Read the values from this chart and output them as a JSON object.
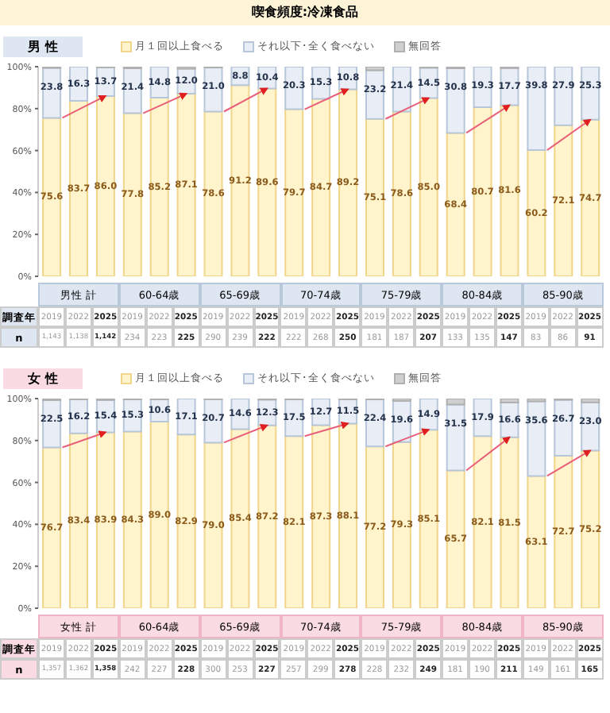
{
  "chart_data": [
    {
      "type": "bar",
      "title": "喫食頻度:冷凍食品",
      "subtitle": "男 性",
      "stacked": true,
      "legend": "top",
      "categories": [
        "2019",
        "2022",
        "2025",
        "2019",
        "2022",
        "2025",
        "2019",
        "2022",
        "2025",
        "2019",
        "2022",
        "2025",
        "2019",
        "2022",
        "2025",
        "2019",
        "2022",
        "2025",
        "2019",
        "2022",
        "2025"
      ],
      "series": [
        {
          "name": "月１回以上食べる",
          "color": "#fff4cc",
          "values": [
            75.6,
            83.7,
            86.0,
            77.8,
            85.2,
            87.1,
            78.6,
            91.2,
            89.6,
            79.7,
            84.7,
            89.2,
            75.1,
            78.6,
            85.0,
            68.4,
            80.7,
            81.6,
            60.2,
            72.1,
            74.7
          ],
          "value_labels": [
            "75.6",
            "83.7",
            "86.0",
            "77.8",
            "85.2",
            "87.1",
            "78.6",
            "91.2",
            "89.6",
            "79.7",
            "84.7",
            "89.2",
            "75.1",
            "78.6",
            "85.0",
            "68.4",
            "80.7",
            "81.6",
            "60.2",
            "72.1",
            "74.7"
          ]
        },
        {
          "name": "それ以下･全く食べない",
          "color": "#e9eef6",
          "values": [
            23.8,
            16.3,
            13.7,
            21.4,
            14.8,
            12.0,
            21.0,
            8.8,
            10.4,
            20.3,
            15.3,
            10.8,
            23.2,
            21.4,
            14.5,
            30.8,
            19.3,
            17.7,
            39.8,
            27.9,
            25.3
          ],
          "value_labels": [
            "23.8",
            "16.3",
            "13.7",
            "21.4",
            "14.8",
            "12.0",
            "21.0",
            "8.8",
            "10.4",
            "20.3",
            "15.3",
            "10.8",
            "23.2",
            "21.4",
            "14.5",
            "30.8",
            "19.3",
            "17.7",
            "39.8",
            "27.9",
            "25.3"
          ]
        },
        {
          "name": "無回答",
          "color": "#cfcfcf",
          "values": [
            0.6,
            0,
            0.3,
            0.8,
            0,
            0.9,
            0.4,
            0,
            0,
            0,
            0,
            0,
            1.7,
            0,
            0.5,
            0.8,
            0,
            0.7,
            0,
            0,
            0
          ]
        }
      ],
      "ylim": [
        0,
        100
      ],
      "yticks": [
        {
          "value": 0,
          "label": "0%"
        },
        {
          "value": 20,
          "label": "20%"
        },
        {
          "value": 40,
          "label": "40%"
        },
        {
          "value": 60,
          "label": "60%"
        },
        {
          "value": 80,
          "label": "80%"
        },
        {
          "value": 100,
          "label": "100%"
        }
      ],
      "annotations": [
        "男性 計",
        "60-64歳",
        "65-69歳",
        "70-74歳",
        "75-79歳",
        "80-84歳",
        "85-90歳",
        "調査年",
        "n",
        "1,143",
        "1,138",
        "1,142",
        "234",
        "223",
        "225",
        "290",
        "239",
        "222",
        "222",
        "268",
        "250",
        "181",
        "187",
        "207",
        "133",
        "135",
        "147",
        "83",
        "86",
        "91"
      ]
    },
    {
      "type": "bar",
      "subtitle": "女 性",
      "stacked": true,
      "legend": "top",
      "categories": [
        "2019",
        "2022",
        "2025",
        "2019",
        "2022",
        "2025",
        "2019",
        "2022",
        "2025",
        "2019",
        "2022",
        "2025",
        "2019",
        "2022",
        "2025",
        "2019",
        "2022",
        "2025",
        "2019",
        "2022",
        "2025"
      ],
      "series": [
        {
          "name": "月１回以上食べる",
          "color": "#fff4cc",
          "values": [
            76.7,
            83.4,
            83.9,
            84.3,
            89.0,
            82.9,
            79.0,
            85.4,
            87.2,
            82.1,
            87.3,
            88.1,
            77.2,
            79.3,
            85.1,
            65.7,
            82.1,
            81.5,
            63.1,
            72.7,
            75.2
          ],
          "value_labels": [
            "76.7",
            "83.4",
            "83.9",
            "84.3",
            "89.0",
            "82.9",
            "79.0",
            "85.4",
            "87.2",
            "82.1",
            "87.3",
            "88.1",
            "77.2",
            "79.3",
            "85.1",
            "65.7",
            "82.1",
            "81.5",
            "63.1",
            "72.7",
            "75.2"
          ]
        },
        {
          "name": "それ以下･全く食べない",
          "color": "#e9eef6",
          "values": [
            22.5,
            16.2,
            15.4,
            15.3,
            10.6,
            17.1,
            20.7,
            14.6,
            12.3,
            17.5,
            12.7,
            11.5,
            22.4,
            19.6,
            14.9,
            31.5,
            17.9,
            16.6,
            35.6,
            26.7,
            23.0
          ],
          "value_labels": [
            "22.5",
            "16.2",
            "15.4",
            "15.3",
            "10.6",
            "17.1",
            "20.7",
            "14.6",
            "12.3",
            "17.5",
            "12.7",
            "11.5",
            "22.4",
            "19.6",
            "14.9",
            "31.5",
            "17.9",
            "16.6",
            "35.6",
            "26.7",
            "23.0"
          ]
        },
        {
          "name": "無回答",
          "color": "#cfcfcf",
          "values": [
            0.8,
            0.4,
            0.7,
            0.4,
            0.4,
            0,
            0.3,
            0,
            0.5,
            0.4,
            0,
            0.4,
            0.4,
            1.1,
            0,
            2.8,
            0,
            1.9,
            1.3,
            0.6,
            1.8
          ]
        }
      ],
      "ylim": [
        0,
        100
      ],
      "yticks": [
        {
          "value": 0,
          "label": "0%"
        },
        {
          "value": 20,
          "label": "20%"
        },
        {
          "value": 40,
          "label": "40%"
        },
        {
          "value": 60,
          "label": "60%"
        },
        {
          "value": 80,
          "label": "80%"
        },
        {
          "value": 100,
          "label": "100%"
        }
      ],
      "annotations": [
        "女性 計",
        "60-64歳",
        "65-69歳",
        "70-74歳",
        "75-79歳",
        "80-84歳",
        "85-90歳",
        "調査年",
        "n",
        "1,357",
        "1,362",
        "1,358",
        "242",
        "227",
        "228",
        "300",
        "253",
        "227",
        "257",
        "299",
        "278",
        "228",
        "232",
        "249",
        "181",
        "190",
        "211",
        "149",
        "161",
        "165"
      ]
    }
  ]
}
